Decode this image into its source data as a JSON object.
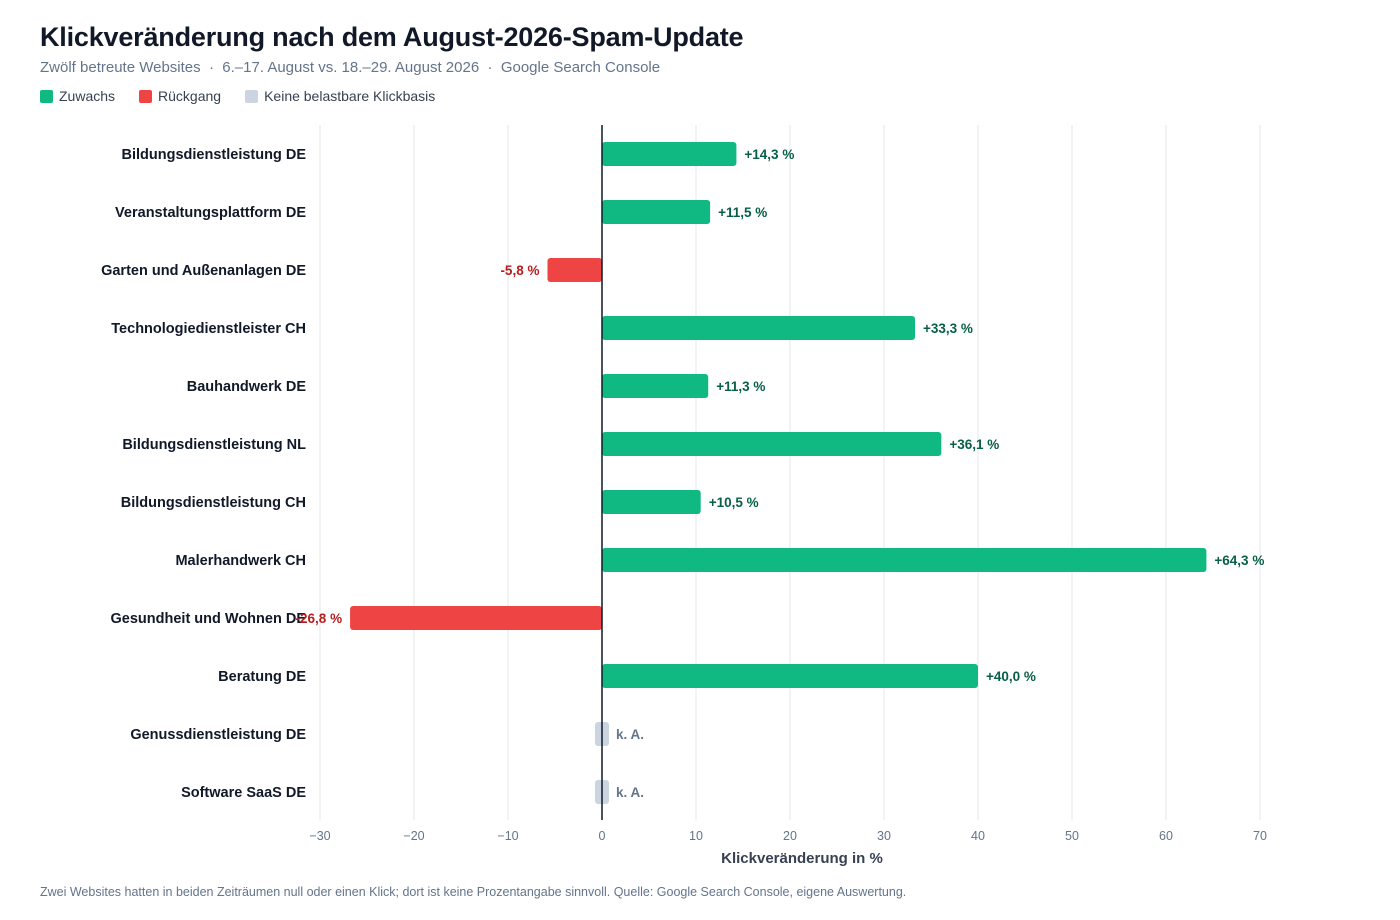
{
  "header": {
    "title": "Klickveränderung nach dem August-2026-Spam-Update",
    "subtitle": "Zwölf betreute Websites  ·  6.–17. August vs. 18.–29. August 2026  ·  Google Search Console"
  },
  "legend": {
    "items": [
      {
        "label": "Zuwachs",
        "color": "#10b981"
      },
      {
        "label": "Rückgang",
        "color": "#ef4444"
      },
      {
        "label": "Keine belastbare Klickbasis",
        "color": "#cbd5e1"
      }
    ]
  },
  "chart_data": {
    "type": "bar",
    "orientation": "horizontal",
    "xlabel": "Klickveränderung in %",
    "xlim": [
      -30,
      70
    ],
    "xticks": [
      -30,
      -20,
      -10,
      0,
      10,
      20,
      30,
      40,
      50,
      60,
      70
    ],
    "xtick_labels": [
      "−30",
      "−20",
      "−10",
      "0",
      "10",
      "20",
      "30",
      "40",
      "50",
      "60",
      "70"
    ],
    "grid": true,
    "colors": {
      "positive": "#10b981",
      "negative": "#ef4444",
      "na": "#cbd5e1"
    },
    "label_colors": {
      "positive": "#065f46",
      "negative": "#b91c1c",
      "na": "#64748b"
    },
    "categories": [
      "Bildungsdienstleistung DE",
      "Veranstaltungsplattform DE",
      "Garten und Außenanlagen DE",
      "Technologiedienstleister CH",
      "Bauhandwerk DE",
      "Bildungsdienstleistung NL",
      "Bildungsdienstleistung CH",
      "Malerhandwerk CH",
      "Gesundheit und Wohnen DE",
      "Beratung DE",
      "Genussdienstleistung DE",
      "Software SaaS DE"
    ],
    "values": [
      14.3,
      11.5,
      -5.8,
      33.3,
      11.3,
      36.1,
      10.5,
      64.3,
      -26.8,
      40.0,
      null,
      null
    ],
    "value_labels": [
      "+14,3 %",
      "+11,5 %",
      "-5,8 %",
      "+33,3 %",
      "+11,3 %",
      "+36,1 %",
      "+10,5 %",
      "+64,3 %",
      "-26,8 %",
      "+40,0 %",
      "k. A.",
      "k. A."
    ]
  },
  "footnote": "Zwei Websites hatten in beiden Zeiträumen null oder einen Klick; dort ist keine Prozentangabe sinnvoll. Quelle: Google Search Console, eigene Auswertung."
}
